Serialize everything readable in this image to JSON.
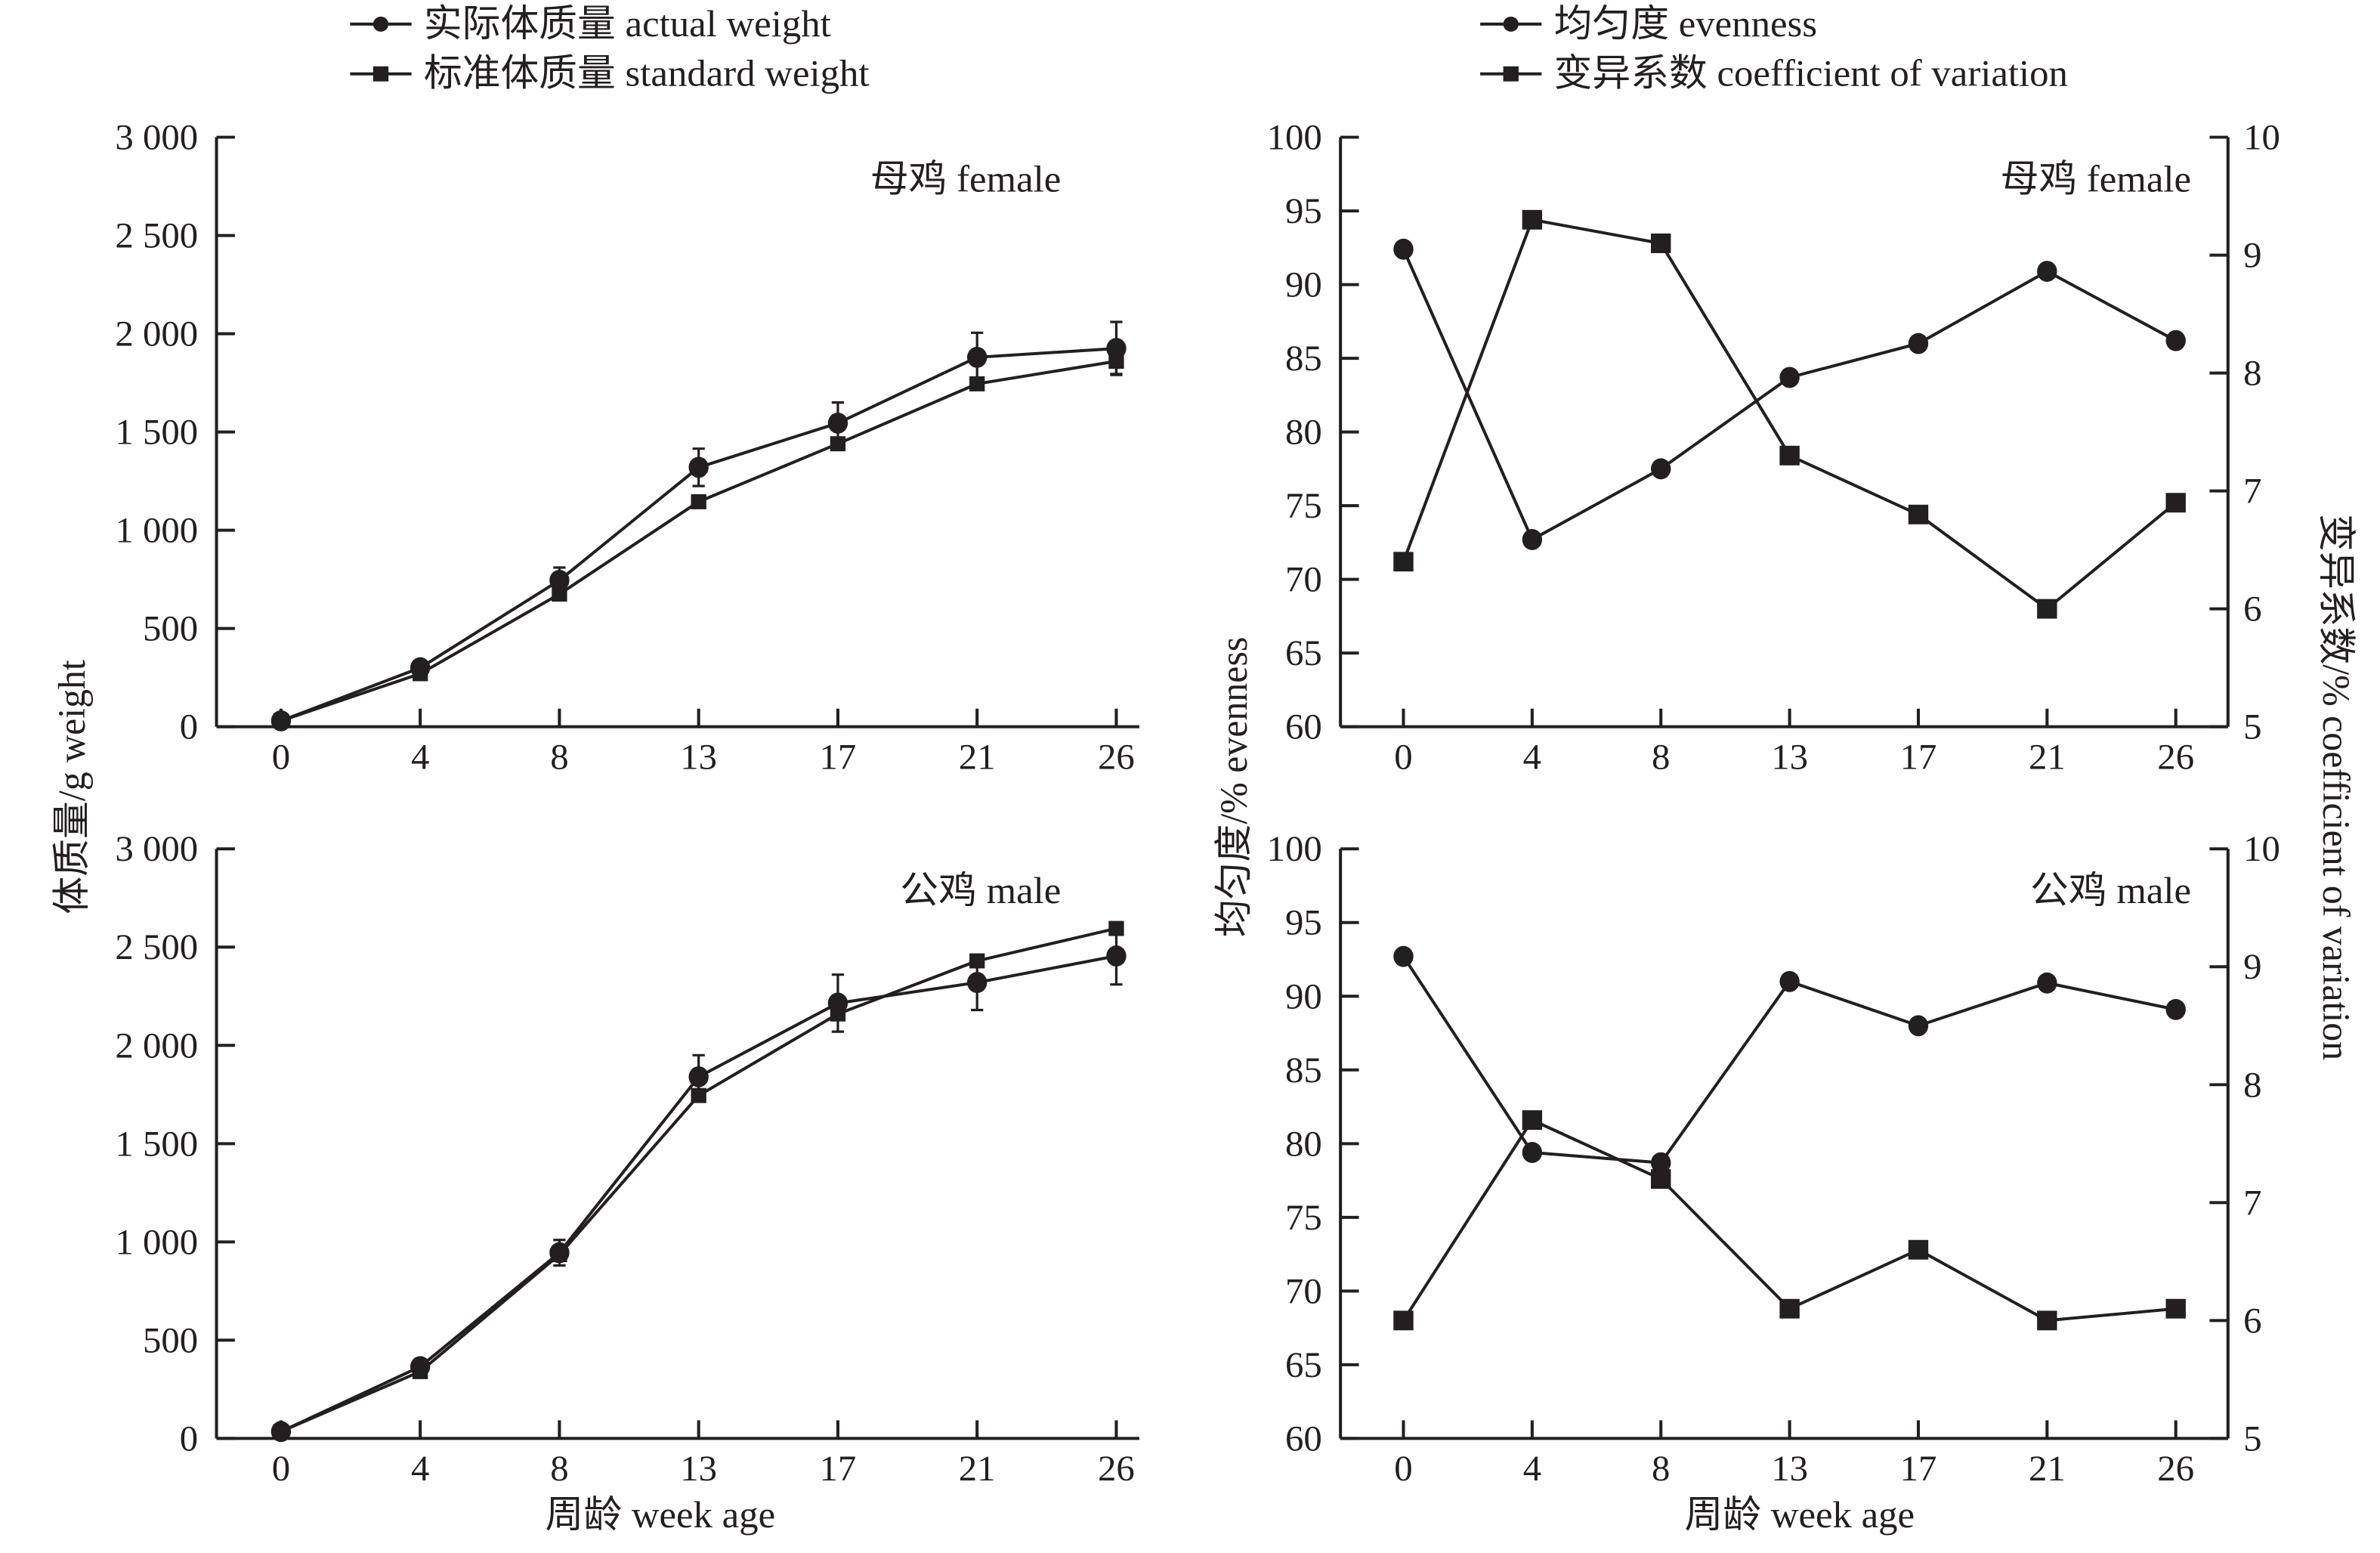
{
  "chart_data": [
    {
      "id": "weight-female",
      "type": "line",
      "panel_label": "母鸡 female",
      "categories": [
        "0",
        "4",
        "8",
        "13",
        "17",
        "21",
        "26"
      ],
      "xlabel": "",
      "ylabel": "体质量/g weight",
      "ylim": [
        0,
        3000
      ],
      "yticks": [
        0,
        500,
        1000,
        1500,
        2000,
        2500,
        3000
      ],
      "ytick_labels": [
        "0",
        "500",
        "1 000",
        "1 500",
        "2 000",
        "2 500",
        "3 000"
      ],
      "series": [
        {
          "name": "实际体质量 actual  weight",
          "marker": "circle",
          "values": [
            30,
            300,
            745,
            1320,
            1545,
            1880,
            1925
          ],
          "error": [
            0,
            10,
            65,
            95,
            105,
            125,
            135
          ]
        },
        {
          "name": "标准体质量 standard weight",
          "marker": "square",
          "values": [
            30,
            270,
            675,
            1145,
            1440,
            1745,
            1860
          ],
          "error": [
            0,
            0,
            0,
            0,
            0,
            0,
            65
          ]
        }
      ]
    },
    {
      "id": "weight-male",
      "type": "line",
      "panel_label": "公鸡 male",
      "categories": [
        "0",
        "4",
        "8",
        "13",
        "17",
        "21",
        "26"
      ],
      "xlabel": "周龄 week age",
      "ylabel": "体质量/g weight",
      "ylim": [
        0,
        3000
      ],
      "yticks": [
        0,
        500,
        1000,
        1500,
        2000,
        2500,
        3000
      ],
      "ytick_labels": [
        "0",
        "500",
        "1 000",
        "1 500",
        "2 000",
        "2 500",
        "3 000"
      ],
      "series": [
        {
          "name": "实际体质量 actual  weight",
          "marker": "circle",
          "values": [
            35,
            365,
            945,
            1840,
            2215,
            2320,
            2455
          ],
          "error": [
            0,
            15,
            65,
            110,
            145,
            140,
            145
          ]
        },
        {
          "name": "标准体质量 standard weight",
          "marker": "square",
          "values": [
            35,
            340,
            935,
            1745,
            2160,
            2430,
            2595
          ],
          "error": [
            0,
            0,
            0,
            0,
            0,
            0,
            0
          ]
        }
      ]
    },
    {
      "id": "evenness-female",
      "type": "line",
      "panel_label": "母鸡 female",
      "categories": [
        "0",
        "4",
        "8",
        "13",
        "17",
        "21",
        "26"
      ],
      "xlabel": "",
      "ylabel": "均匀度/% evenness",
      "ylabel_right": "变异系数/% coefficient of variation",
      "ylim": [
        60,
        100
      ],
      "yticks": [
        60,
        65,
        70,
        75,
        80,
        85,
        90,
        95,
        100
      ],
      "ylim_right": [
        5,
        10
      ],
      "yticks_right": [
        5,
        6,
        7,
        8,
        9,
        10
      ],
      "series": [
        {
          "name": "均匀度 evenness",
          "marker": "circle",
          "axis": "left",
          "values": [
            92.4,
            72.7,
            77.5,
            83.7,
            86.0,
            90.9,
            86.2
          ]
        },
        {
          "name": "变异系数 coefficient of variation",
          "marker": "square",
          "axis": "right",
          "values": [
            6.4,
            9.3,
            9.1,
            7.3,
            6.8,
            6.0,
            6.9
          ]
        }
      ]
    },
    {
      "id": "evenness-male",
      "type": "line",
      "panel_label": "公鸡 male",
      "categories": [
        "0",
        "4",
        "8",
        "13",
        "17",
        "21",
        "26"
      ],
      "xlabel": "周龄 week age",
      "ylabel": "均匀度/% evenness",
      "ylabel_right": "变异系数/% coefficient of variation",
      "ylim": [
        60,
        100
      ],
      "yticks": [
        60,
        65,
        70,
        75,
        80,
        85,
        90,
        95,
        100
      ],
      "ylim_right": [
        5,
        10
      ],
      "yticks_right": [
        5,
        6,
        7,
        8,
        9,
        10
      ],
      "series": [
        {
          "name": "均匀度 evenness",
          "marker": "circle",
          "axis": "left",
          "values": [
            92.7,
            79.4,
            78.7,
            91.0,
            88.0,
            90.9,
            89.1
          ]
        },
        {
          "name": "变异系数 coefficient of variation",
          "marker": "square",
          "axis": "right",
          "values": [
            6.0,
            7.7,
            7.2,
            6.1,
            6.6,
            6.0,
            6.1
          ]
        }
      ]
    }
  ],
  "legends": {
    "weight": [
      "实际体质量 actual  weight",
      "标准体质量 standard weight"
    ],
    "evenness": [
      "均匀度 evenness",
      "变异系数 coefficient of variation"
    ]
  },
  "labels": {
    "weight_ylabel": "体质量/g weight",
    "evenness_ylabel": "均匀度/% evenness",
    "cv_ylabel": "变异系数/% coefficient of variation",
    "xlabel": "周龄 week age"
  }
}
